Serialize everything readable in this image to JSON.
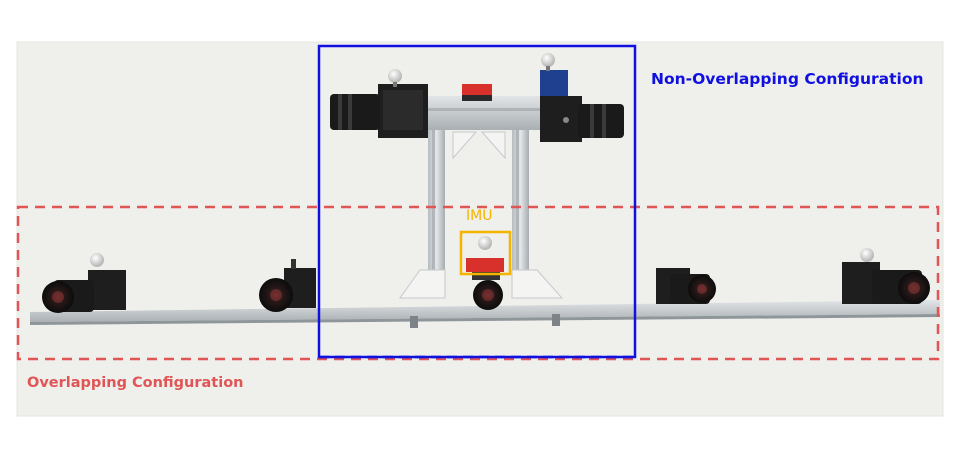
{
  "labels": {
    "non_overlapping": "Non-Overlapping Configuration",
    "overlapping": "Overlapping Configuration",
    "imu": "IMU"
  },
  "colors": {
    "non_overlapping_box": "#1010e0",
    "overlapping_box": "#e05555",
    "imu_box": "#f5b400",
    "rail": "#c9ced2",
    "background": "#f0f0ee",
    "camera_body": "#1e1e1e",
    "marker_ball": "#e6e6e6",
    "sensor_red": "#d8312b"
  },
  "icons": {
    "camera": "camera-icon",
    "marker": "reflective-marker-icon",
    "frame": "aluminum-frame-icon"
  }
}
